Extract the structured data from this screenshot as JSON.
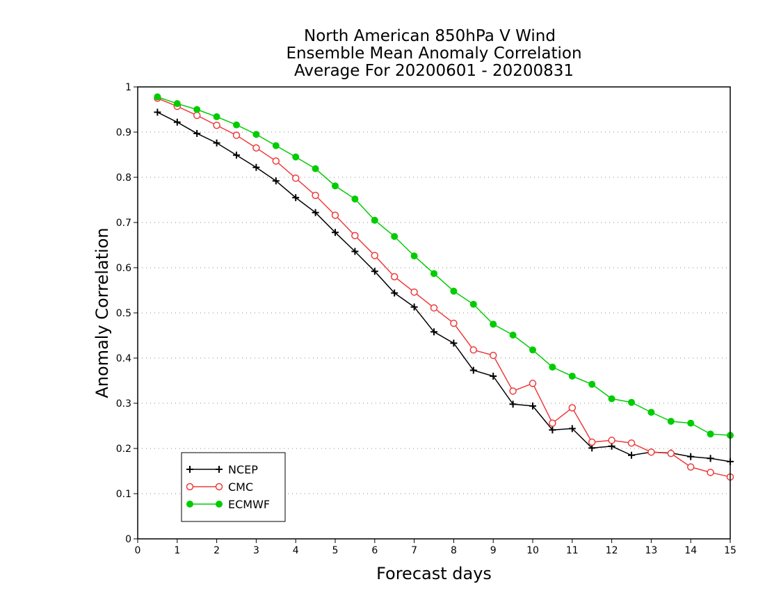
{
  "chart_data": {
    "type": "line",
    "title": [
      "North American 850hPa V Wind",
      "Ensemble Mean Anomaly Correlation",
      "Average For 20200601 - 20200831"
    ],
    "xlabel": "Forecast days",
    "ylabel": "Anomaly Correlation",
    "xlim": [
      0,
      15
    ],
    "ylim": [
      0,
      1
    ],
    "xticks": [
      "0",
      "1",
      "2",
      "3",
      "4",
      "5",
      "6",
      "7",
      "8",
      "9",
      "10",
      "11",
      "12",
      "13",
      "14",
      "15"
    ],
    "yticks": [
      "0",
      "0.1",
      "0.2",
      "0.3",
      "0.4",
      "0.5",
      "0.6",
      "0.7",
      "0.8",
      "0.9",
      "1"
    ],
    "grid": "horizontal dotted",
    "legend_position": "bottom-left",
    "x": [
      0.5,
      1,
      1.5,
      2,
      2.5,
      3,
      3.5,
      4,
      4.5,
      5,
      5.5,
      6,
      6.5,
      7,
      7.5,
      8,
      8.5,
      9,
      9.5,
      10,
      10.5,
      11,
      11.5,
      12,
      12.5,
      13,
      13.5,
      14,
      14.5,
      15
    ],
    "series": [
      {
        "name": "NCEP",
        "color": "#000000",
        "marker": "plus",
        "values": [
          0.944,
          0.922,
          0.897,
          0.876,
          0.849,
          0.822,
          0.792,
          0.755,
          0.722,
          0.678,
          0.636,
          0.592,
          0.544,
          0.513,
          0.458,
          0.433,
          0.373,
          0.36,
          0.298,
          0.294,
          0.241,
          0.244,
          0.201,
          0.205,
          0.185,
          0.192,
          0.19,
          0.182,
          0.178,
          0.171
        ]
      },
      {
        "name": "CMC",
        "color": "#ee3b3b",
        "marker": "open-circle",
        "values": [
          0.975,
          0.957,
          0.937,
          0.915,
          0.893,
          0.865,
          0.836,
          0.798,
          0.76,
          0.716,
          0.671,
          0.627,
          0.58,
          0.546,
          0.511,
          0.477,
          0.418,
          0.406,
          0.327,
          0.344,
          0.256,
          0.29,
          0.214,
          0.218,
          0.212,
          0.192,
          0.189,
          0.159,
          0.147,
          0.137
        ]
      },
      {
        "name": "ECMWF",
        "color": "#00cc00",
        "marker": "filled-circle",
        "values": [
          0.978,
          0.963,
          0.95,
          0.934,
          0.916,
          0.895,
          0.87,
          0.845,
          0.819,
          0.781,
          0.752,
          0.705,
          0.669,
          0.626,
          0.587,
          0.548,
          0.519,
          0.475,
          0.451,
          0.418,
          0.38,
          0.36,
          0.342,
          0.31,
          0.302,
          0.28,
          0.26,
          0.256,
          0.232,
          0.229
        ]
      }
    ]
  }
}
